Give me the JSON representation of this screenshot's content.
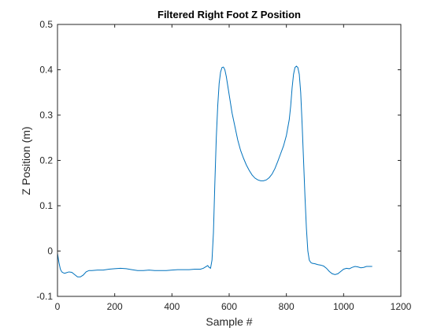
{
  "chart_data": {
    "type": "line",
    "title": "Filtered Right Foot Z Position",
    "xlabel": "Sample #",
    "ylabel": "Z Position (m)",
    "xlim": [
      0,
      1200
    ],
    "ylim": [
      -0.1,
      0.5
    ],
    "xticks": [
      0,
      200,
      400,
      600,
      800,
      1000,
      1200
    ],
    "xtick_labels": [
      "0",
      "200",
      "400",
      "600",
      "800",
      "1000",
      "1200"
    ],
    "yticks": [
      -0.1,
      0,
      0.1,
      0.2,
      0.3,
      0.4,
      0.5
    ],
    "ytick_labels": [
      "-0.1",
      "0",
      "0.1",
      "0.2",
      "0.3",
      "0.4",
      "0.5"
    ],
    "grid": false,
    "legend": false,
    "line_color": "#0072BD",
    "series": [
      {
        "x": [
          0,
          5,
          10,
          15,
          20,
          25,
          30,
          40,
          50,
          60,
          70,
          80,
          90,
          100,
          110,
          120,
          140,
          160,
          180,
          200,
          220,
          240,
          260,
          280,
          300,
          320,
          340,
          360,
          380,
          400,
          420,
          440,
          460,
          480,
          500,
          510,
          520,
          525,
          530,
          535,
          540,
          545,
          550,
          555,
          560,
          565,
          570,
          575,
          580,
          585,
          590,
          595,
          600,
          605,
          610,
          620,
          630,
          640,
          650,
          660,
          670,
          680,
          690,
          700,
          710,
          720,
          730,
          740,
          750,
          760,
          770,
          780,
          790,
          800,
          810,
          815,
          820,
          825,
          830,
          835,
          840,
          845,
          850,
          855,
          860,
          865,
          870,
          875,
          880,
          885,
          890,
          900,
          910,
          920,
          930,
          940,
          950,
          960,
          970,
          980,
          990,
          1000,
          1010,
          1020,
          1030,
          1040,
          1050,
          1060,
          1070,
          1080,
          1090,
          1100
        ],
        "y": [
          -0.005,
          -0.025,
          -0.04,
          -0.046,
          -0.048,
          -0.049,
          -0.048,
          -0.046,
          -0.047,
          -0.052,
          -0.057,
          -0.057,
          -0.053,
          -0.046,
          -0.043,
          -0.043,
          -0.042,
          -0.042,
          -0.04,
          -0.039,
          -0.038,
          -0.039,
          -0.041,
          -0.043,
          -0.043,
          -0.042,
          -0.043,
          -0.043,
          -0.043,
          -0.042,
          -0.041,
          -0.041,
          -0.041,
          -0.04,
          -0.04,
          -0.038,
          -0.034,
          -0.032,
          -0.036,
          -0.038,
          -0.02,
          0.04,
          0.15,
          0.25,
          0.32,
          0.37,
          0.395,
          0.405,
          0.406,
          0.4,
          0.385,
          0.365,
          0.345,
          0.325,
          0.305,
          0.275,
          0.245,
          0.222,
          0.205,
          0.19,
          0.178,
          0.168,
          0.161,
          0.157,
          0.155,
          0.155,
          0.157,
          0.162,
          0.17,
          0.182,
          0.198,
          0.215,
          0.232,
          0.255,
          0.29,
          0.32,
          0.36,
          0.39,
          0.405,
          0.408,
          0.405,
          0.39,
          0.35,
          0.28,
          0.2,
          0.12,
          0.05,
          0.0,
          -0.02,
          -0.025,
          -0.027,
          -0.028,
          -0.03,
          -0.031,
          -0.033,
          -0.038,
          -0.045,
          -0.05,
          -0.052,
          -0.05,
          -0.045,
          -0.04,
          -0.038,
          -0.039,
          -0.036,
          -0.034,
          -0.035,
          -0.037,
          -0.036,
          -0.034,
          -0.034,
          -0.034
        ]
      }
    ]
  }
}
